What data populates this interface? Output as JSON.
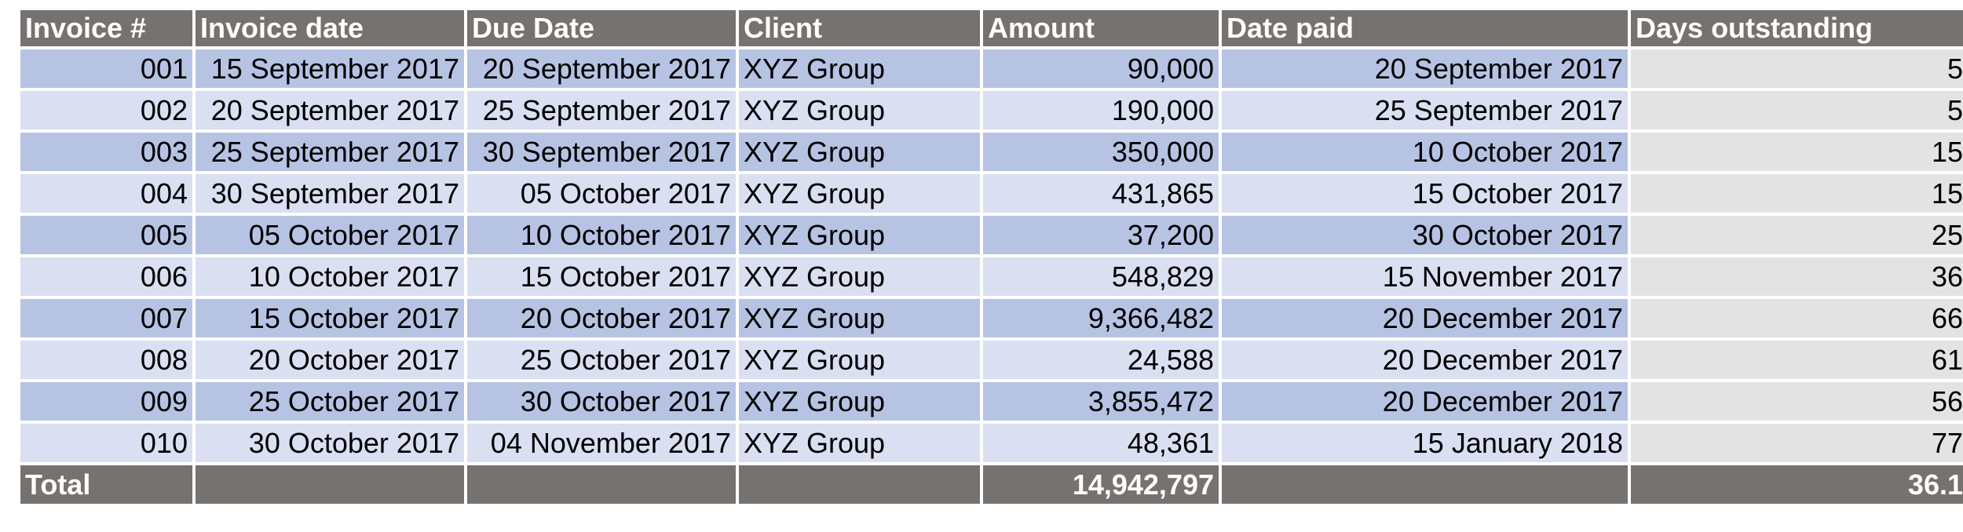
{
  "table": {
    "headers": [
      "Invoice #",
      "Invoice date",
      "Due Date",
      "Client",
      "Amount",
      "Date paid",
      "Days outstanding"
    ],
    "rows": [
      [
        "001",
        "15 September 2017",
        "20 September 2017",
        "XYZ Group",
        "90,000",
        "20 September 2017",
        "5"
      ],
      [
        "002",
        "20 September 2017",
        "25 September 2017",
        "XYZ Group",
        "190,000",
        "25 September 2017",
        "5"
      ],
      [
        "003",
        "25 September 2017",
        "30 September 2017",
        "XYZ Group",
        "350,000",
        "10 October 2017",
        "15"
      ],
      [
        "004",
        "30 September 2017",
        "05 October 2017",
        "XYZ Group",
        "431,865",
        "15 October 2017",
        "15"
      ],
      [
        "005",
        "05 October 2017",
        "10 October 2017",
        "XYZ Group",
        "37,200",
        "30 October 2017",
        "25"
      ],
      [
        "006",
        "10 October 2017",
        "15 October 2017",
        "XYZ Group",
        "548,829",
        "15 November 2017",
        "36"
      ],
      [
        "007",
        "15 October 2017",
        "20 October 2017",
        "XYZ Group",
        "9,366,482",
        "20 December 2017",
        "66"
      ],
      [
        "008",
        "20 October 2017",
        "25 October 2017",
        "XYZ Group",
        "24,588",
        "20 December 2017",
        "61"
      ],
      [
        "009",
        "25 October 2017",
        "30 October 2017",
        "XYZ Group",
        "3,855,472",
        "20 December 2017",
        "56"
      ],
      [
        "010",
        "30 October 2017",
        "04 November 2017",
        "XYZ Group",
        "48,361",
        "15 January 2018",
        "77"
      ]
    ],
    "total": {
      "label": "Total",
      "amount": "14,942,797",
      "days_outstanding": "36.1"
    }
  },
  "colors": {
    "header_bg": "#76726f",
    "row_dark": "#b6c3e3",
    "row_light": "#dadff1",
    "days_column_bg": "#e3e3e3"
  }
}
